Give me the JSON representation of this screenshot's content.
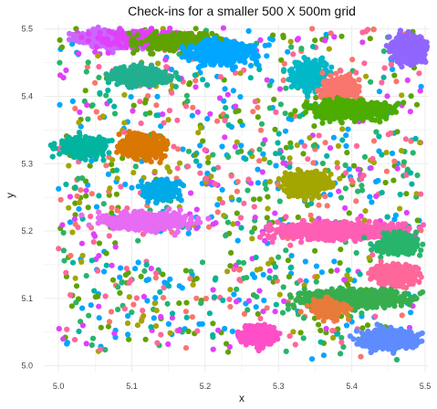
{
  "chart_data": {
    "type": "scatter",
    "title": "Check-ins for a smaller 500 X 500m grid",
    "xlabel": "x",
    "ylabel": "y",
    "xlim": [
      4.98,
      5.505
    ],
    "ylim": [
      4.99,
      5.505
    ],
    "x_ticks": [
      "5.0",
      "5.1",
      "5.2",
      "5.3",
      "5.4",
      "5.5"
    ],
    "y_ticks": [
      "5.0",
      "5.1",
      "5.2",
      "5.3",
      "5.4",
      "5.5"
    ],
    "grid": true,
    "legend": "none",
    "background": "#ffffff",
    "grid_color": "#ebebeb",
    "clusters": [
      {
        "color": "#cc66ff",
        "center": [
          5.08,
          5.485
        ],
        "spread": [
          0.04,
          0.01
        ],
        "count": 700
      },
      {
        "color": "#e040fb",
        "center": [
          5.12,
          5.485
        ],
        "spread": [
          0.06,
          0.012
        ],
        "count": 220
      },
      {
        "color": "#5fa300",
        "center": [
          5.17,
          5.48
        ],
        "spread": [
          0.05,
          0.012
        ],
        "count": 260
      },
      {
        "color": "#00a6ff",
        "center": [
          5.22,
          5.465
        ],
        "spread": [
          0.04,
          0.015
        ],
        "count": 450
      },
      {
        "color": "#9166ff",
        "center": [
          5.48,
          5.47
        ],
        "spread": [
          0.024,
          0.015
        ],
        "count": 500
      },
      {
        "color": "#20b090",
        "center": [
          5.11,
          5.43
        ],
        "spread": [
          0.03,
          0.012
        ],
        "count": 420
      },
      {
        "color": "#00b8c8",
        "center": [
          5.34,
          5.43
        ],
        "spread": [
          0.02,
          0.02
        ],
        "count": 300
      },
      {
        "color": "#f8766d",
        "center": [
          5.385,
          5.41
        ],
        "spread": [
          0.02,
          0.015
        ],
        "count": 380
      },
      {
        "color": "#4cac00",
        "center": [
          5.4,
          5.38
        ],
        "spread": [
          0.045,
          0.012
        ],
        "count": 520
      },
      {
        "color": "#00b4a0",
        "center": [
          5.035,
          5.325
        ],
        "spread": [
          0.025,
          0.012
        ],
        "count": 420
      },
      {
        "color": "#d97700",
        "center": [
          5.115,
          5.325
        ],
        "spread": [
          0.025,
          0.015
        ],
        "count": 420
      },
      {
        "color": "#00aae6",
        "center": [
          5.14,
          5.26
        ],
        "spread": [
          0.02,
          0.012
        ],
        "count": 330
      },
      {
        "color": "#a3a500",
        "center": [
          5.34,
          5.27
        ],
        "spread": [
          0.025,
          0.015
        ],
        "count": 420
      },
      {
        "color": "#e76bf3",
        "center": [
          5.12,
          5.215
        ],
        "spread": [
          0.045,
          0.01
        ],
        "count": 650
      },
      {
        "color": "#ff5eb5",
        "center": [
          5.38,
          5.2
        ],
        "spread": [
          0.07,
          0.01
        ],
        "count": 900
      },
      {
        "color": "#27b56b",
        "center": [
          5.465,
          5.18
        ],
        "spread": [
          0.025,
          0.012
        ],
        "count": 320
      },
      {
        "color": "#ff6699",
        "center": [
          5.46,
          5.135
        ],
        "spread": [
          0.025,
          0.012
        ],
        "count": 360
      },
      {
        "color": "#38ad4e",
        "center": [
          5.4,
          5.1
        ],
        "spread": [
          0.06,
          0.01
        ],
        "count": 900
      },
      {
        "color": "#e87a3a",
        "center": [
          5.37,
          5.085
        ],
        "spread": [
          0.02,
          0.012
        ],
        "count": 220
      },
      {
        "color": "#ff4fc8",
        "center": [
          5.27,
          5.045
        ],
        "spread": [
          0.02,
          0.012
        ],
        "count": 420
      },
      {
        "color": "#5e8cff",
        "center": [
          5.45,
          5.04
        ],
        "spread": [
          0.03,
          0.012
        ],
        "count": 550
      }
    ],
    "scatter_points": [
      {
        "color": "#00a6ff",
        "n": 260
      },
      {
        "color": "#5fa300",
        "n": 200
      },
      {
        "color": "#f8766d",
        "n": 140
      },
      {
        "color": "#27b56b",
        "n": 200
      },
      {
        "color": "#e040fb",
        "n": 160
      },
      {
        "color": "#a3a500",
        "n": 120
      },
      {
        "color": "#ff6699",
        "n": 140
      },
      {
        "color": "#00b4a0",
        "n": 100
      }
    ]
  }
}
